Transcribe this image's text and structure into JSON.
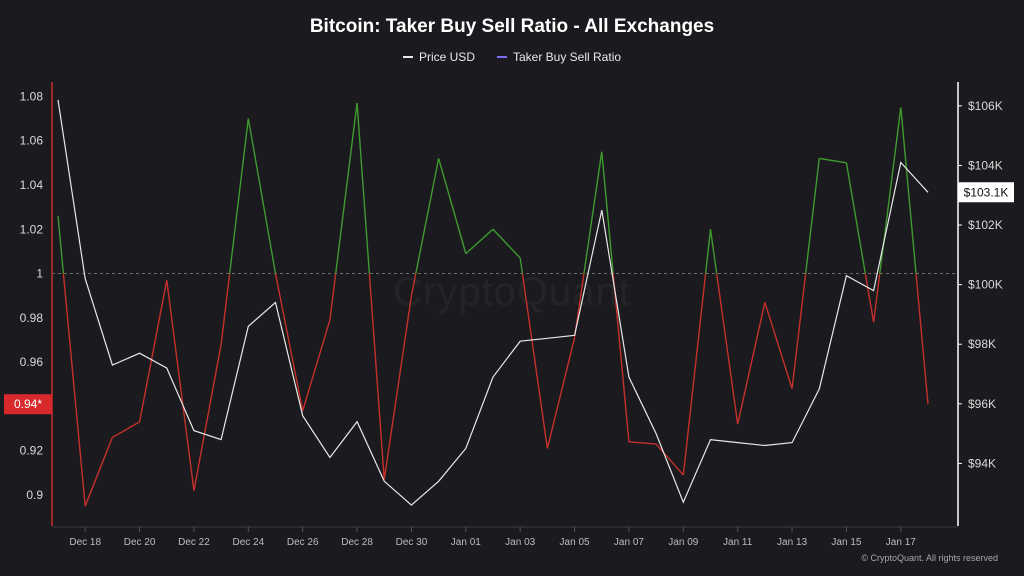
{
  "colors": {
    "background": "#1b1b1f",
    "price_line": "#e8e8e8",
    "legend_ratio": "#7b6cf6",
    "ratio_above": "#3f9a2f",
    "ratio_below": "#c5302b",
    "left_axis": "#c5302b",
    "right_axis": "#ffffff",
    "label_bg": "#d8292c"
  },
  "watermark": "CryptoQuant",
  "copyright": "© CryptoQuant. All rights reserved",
  "chart_data": {
    "type": "line",
    "title": "Bitcoin: Taker Buy Sell Ratio - All Exchanges",
    "legend_placement": "top-center",
    "grid": false,
    "x_tick_labels": [
      "Dec 18",
      "Dec 20",
      "Dec 22",
      "Dec 24",
      "Dec 26",
      "Dec 28",
      "Dec 30",
      "Jan 01",
      "Jan 03",
      "Jan 05",
      "Jan 07",
      "Jan 09",
      "Jan 11",
      "Jan 13",
      "Jan 15",
      "Jan 17"
    ],
    "x": [
      "Dec 17",
      "Dec 18",
      "Dec 19",
      "Dec 20",
      "Dec 21",
      "Dec 22",
      "Dec 23",
      "Dec 24",
      "Dec 25",
      "Dec 26",
      "Dec 27",
      "Dec 28",
      "Dec 29",
      "Dec 30",
      "Dec 31",
      "Jan 01",
      "Jan 02",
      "Jan 03",
      "Jan 04",
      "Jan 05",
      "Jan 06",
      "Jan 07",
      "Jan 08",
      "Jan 09",
      "Jan 10",
      "Jan 11",
      "Jan 12",
      "Jan 13",
      "Jan 14",
      "Jan 15",
      "Jan 16",
      "Jan 17",
      "Jan 18"
    ],
    "left_axis": {
      "ticks": [
        "0.9",
        "0.92",
        "0.94",
        "0.96",
        "0.98",
        "1",
        "1.02",
        "1.04",
        "1.06",
        "1.08"
      ],
      "range": [
        0.886,
        1.0865
      ],
      "reference": 1,
      "current_label": "0.94*"
    },
    "right_axis": {
      "ticks": [
        "$94K",
        "$96K",
        "$98K",
        "$100K",
        "$102K",
        "$104K",
        "$106K"
      ],
      "range": [
        91900,
        106800
      ],
      "current_label": "$103.1K"
    },
    "series": [
      {
        "name": "Price USD",
        "axis": "right",
        "values": [
          106200,
          100200,
          97300,
          97700,
          97200,
          95100,
          94800,
          98600,
          99400,
          95600,
          94200,
          95400,
          93400,
          92600,
          93400,
          94500,
          96900,
          98100,
          98200,
          98300,
          102500,
          96900,
          95000,
          92700,
          94800,
          94700,
          94600,
          94700,
          96500,
          100300,
          99800,
          104100,
          103100
        ]
      },
      {
        "name": "Taker Buy Sell Ratio",
        "axis": "left",
        "values": [
          1.026,
          0.895,
          0.926,
          0.933,
          0.997,
          0.902,
          0.968,
          1.07,
          1.0,
          0.938,
          0.979,
          1.077,
          0.907,
          0.99,
          1.052,
          1.009,
          1.02,
          1.007,
          0.921,
          0.971,
          1.055,
          0.924,
          0.923,
          0.909,
          1.02,
          0.932,
          0.987,
          0.948,
          1.052,
          1.05,
          0.978,
          1.075,
          0.941
        ]
      }
    ]
  }
}
